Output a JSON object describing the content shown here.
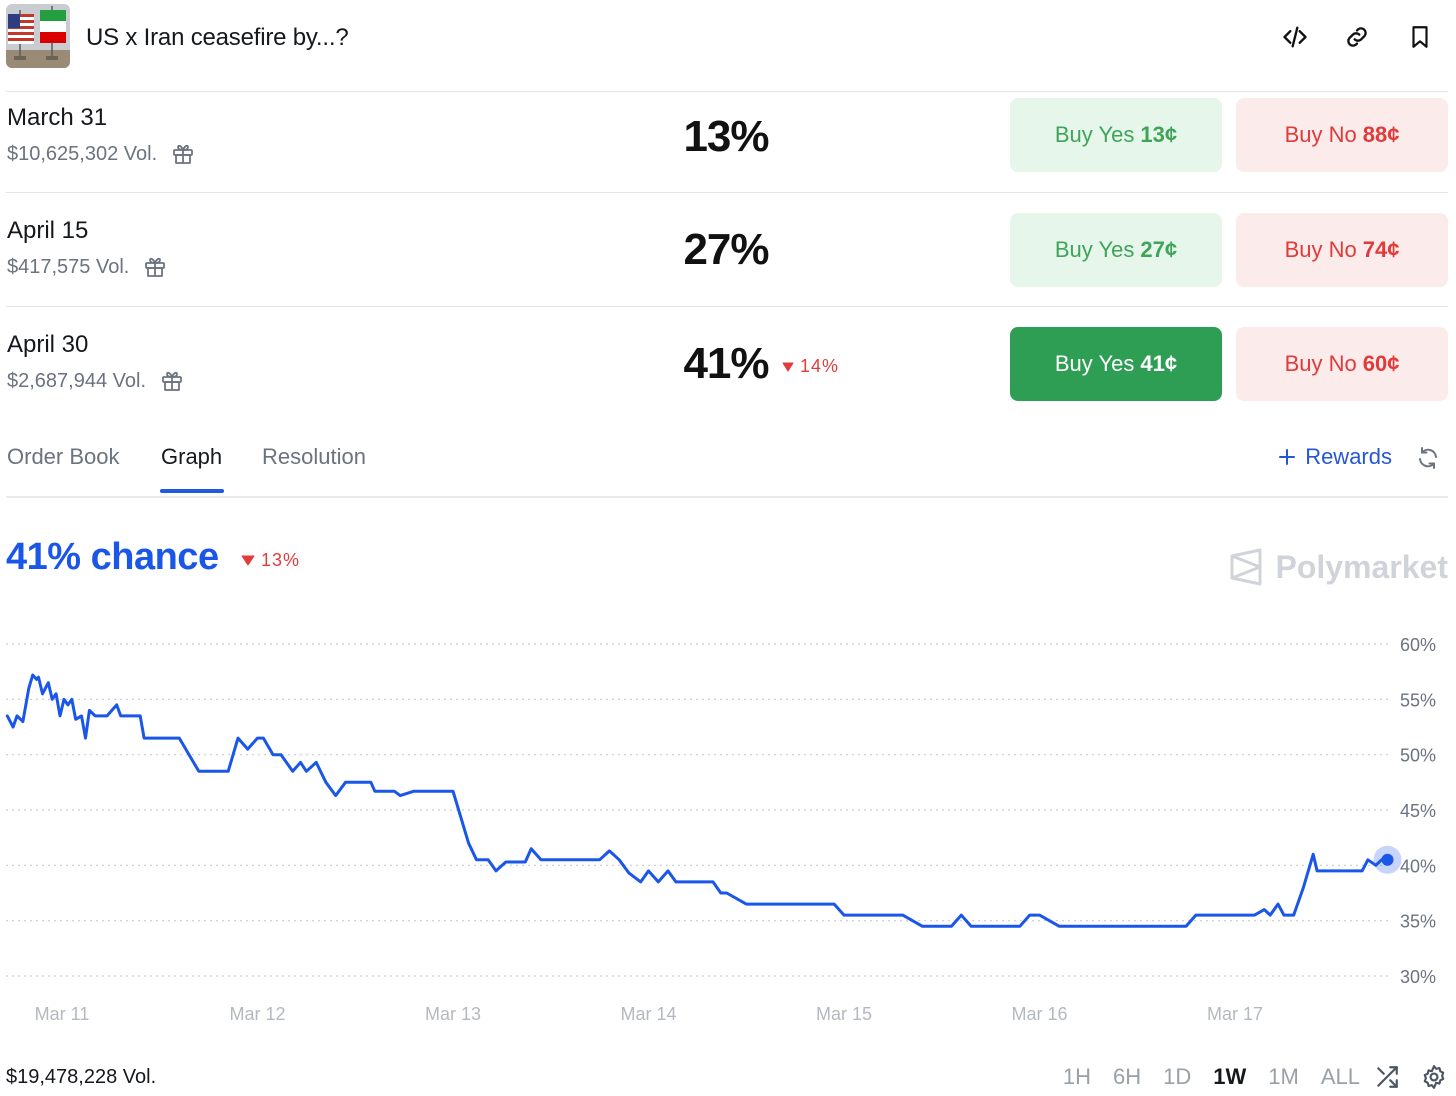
{
  "header": {
    "title": "US x Iran ceasefire by...?",
    "icons": [
      "embed-icon",
      "link-icon",
      "bookmark-icon"
    ]
  },
  "outcomes": [
    {
      "date": "March 31",
      "volume": "$10,625,302 Vol.",
      "percent": "13%",
      "delta": "",
      "yes_label": "Buy Yes",
      "yes_price": "13¢",
      "no_label": "Buy No",
      "no_price": "88¢",
      "active": false
    },
    {
      "date": "April 15",
      "volume": "$417,575 Vol.",
      "percent": "27%",
      "delta": "",
      "yes_label": "Buy Yes",
      "yes_price": "27¢",
      "no_label": "Buy No",
      "no_price": "74¢",
      "active": false
    },
    {
      "date": "April 30",
      "volume": "$2,687,944 Vol.",
      "percent": "41%",
      "delta": "14%",
      "yes_label": "Buy Yes",
      "yes_price": "41¢",
      "no_label": "Buy No",
      "no_price": "60¢",
      "active": true
    }
  ],
  "tabs": {
    "items": [
      "Order Book",
      "Graph",
      "Resolution"
    ],
    "active": "Graph",
    "rewards_label": "Rewards"
  },
  "graph": {
    "chance_label": "41% chance",
    "delta": "13%",
    "brand": "Polymarket"
  },
  "footer": {
    "volume": "$19,478,228 Vol.",
    "ranges": [
      "1H",
      "6H",
      "1D",
      "1W",
      "1M",
      "ALL"
    ],
    "active_range": "1W"
  },
  "colors": {
    "line": "#1a56e8",
    "yes": "#2f9e55",
    "no": "#e03a3a",
    "down": "#e23b3b"
  },
  "chart_data": {
    "type": "line",
    "title": "",
    "xlabel": "",
    "ylabel": "",
    "x_ticks": [
      "Mar 11",
      "Mar 12",
      "Mar 13",
      "Mar 14",
      "Mar 15",
      "Mar 16",
      "Mar 17"
    ],
    "y_ticks": [
      "60%",
      "55%",
      "50%",
      "45%",
      "40%",
      "35%",
      "30%"
    ],
    "ylim": [
      30,
      60
    ],
    "y_axis_side": "right",
    "grid": "horizontal-dotted",
    "series": [
      {
        "x": [
          10.72,
          10.75,
          10.77,
          10.8,
          10.83,
          10.85,
          10.87,
          10.88,
          10.9,
          10.93,
          10.95,
          10.97,
          10.99,
          11.01,
          11.03,
          11.05,
          11.07,
          11.1,
          11.12,
          11.14,
          11.17,
          11.2,
          11.23,
          11.28,
          11.3,
          11.32,
          11.35,
          11.38,
          11.4,
          11.42,
          11.5,
          11.6,
          11.7,
          11.74,
          11.8,
          11.85,
          11.9,
          11.95,
          12.0,
          12.03,
          12.08,
          12.12,
          12.18,
          12.22,
          12.25,
          12.3,
          12.35,
          12.4,
          12.45,
          12.48,
          12.5,
          12.53,
          12.55,
          12.58,
          12.6,
          12.65,
          12.7,
          12.73,
          12.8,
          12.9,
          13.0,
          13.08,
          13.12,
          13.18,
          13.22,
          13.27,
          13.3,
          13.37,
          13.4,
          13.45,
          13.5,
          13.57,
          13.6,
          13.65,
          13.7,
          13.75,
          13.8,
          13.85,
          13.9,
          13.96,
          14.0,
          14.05,
          14.1,
          14.14,
          14.18,
          14.25,
          14.3,
          14.33,
          14.37,
          14.4,
          14.5,
          14.6,
          14.7,
          14.8,
          14.85,
          14.95,
          15.0,
          15.1,
          15.2,
          15.3,
          15.4,
          15.5,
          15.55,
          15.6,
          15.65,
          15.75,
          15.8,
          15.85,
          15.9,
          15.95,
          16.0,
          16.1,
          16.2,
          16.3,
          16.35,
          16.4,
          16.5,
          16.6,
          16.7,
          16.75,
          16.8,
          16.9,
          17.0,
          17.1,
          17.15,
          17.18,
          17.22,
          17.25,
          17.3,
          17.35,
          17.4,
          17.42,
          17.45,
          17.5,
          17.6,
          17.65,
          17.68,
          17.72,
          17.75,
          17.78
        ],
        "y": [
          53.5,
          52.5,
          53.5,
          53.0,
          56.0,
          57.2,
          56.8,
          57.0,
          55.5,
          56.5,
          55.0,
          55.5,
          53.5,
          55.0,
          54.5,
          55.0,
          53.2,
          53.5,
          51.5,
          54.0,
          53.5,
          53.5,
          53.5,
          54.5,
          53.5,
          53.5,
          53.5,
          53.5,
          53.5,
          51.5,
          51.5,
          51.5,
          48.5,
          48.5,
          48.5,
          48.5,
          51.5,
          50.5,
          51.5,
          51.5,
          50.0,
          50.0,
          48.5,
          49.3,
          48.5,
          49.3,
          47.5,
          46.3,
          47.5,
          47.5,
          47.5,
          47.5,
          47.5,
          47.5,
          46.7,
          46.7,
          46.7,
          46.3,
          46.7,
          46.7,
          46.7,
          42.0,
          40.5,
          40.5,
          39.5,
          40.3,
          40.3,
          40.3,
          41.5,
          40.5,
          40.5,
          40.5,
          40.5,
          40.5,
          40.5,
          40.5,
          41.3,
          40.5,
          39.3,
          38.5,
          39.5,
          38.5,
          39.5,
          38.5,
          38.5,
          38.5,
          38.5,
          38.5,
          37.5,
          37.5,
          36.5,
          36.5,
          36.5,
          36.5,
          36.5,
          36.5,
          35.5,
          35.5,
          35.5,
          35.5,
          34.5,
          34.5,
          34.5,
          35.5,
          34.5,
          34.5,
          34.5,
          34.5,
          34.5,
          35.5,
          35.5,
          34.5,
          34.5,
          34.5,
          34.5,
          34.5,
          34.5,
          34.5,
          34.5,
          34.5,
          35.5,
          35.5,
          35.5,
          35.5,
          36.0,
          35.5,
          36.5,
          35.5,
          35.5,
          38.0,
          41.0,
          39.5,
          39.5,
          39.5,
          39.5,
          39.5,
          40.5,
          40.0,
          40.5,
          40.5
        ]
      }
    ]
  }
}
